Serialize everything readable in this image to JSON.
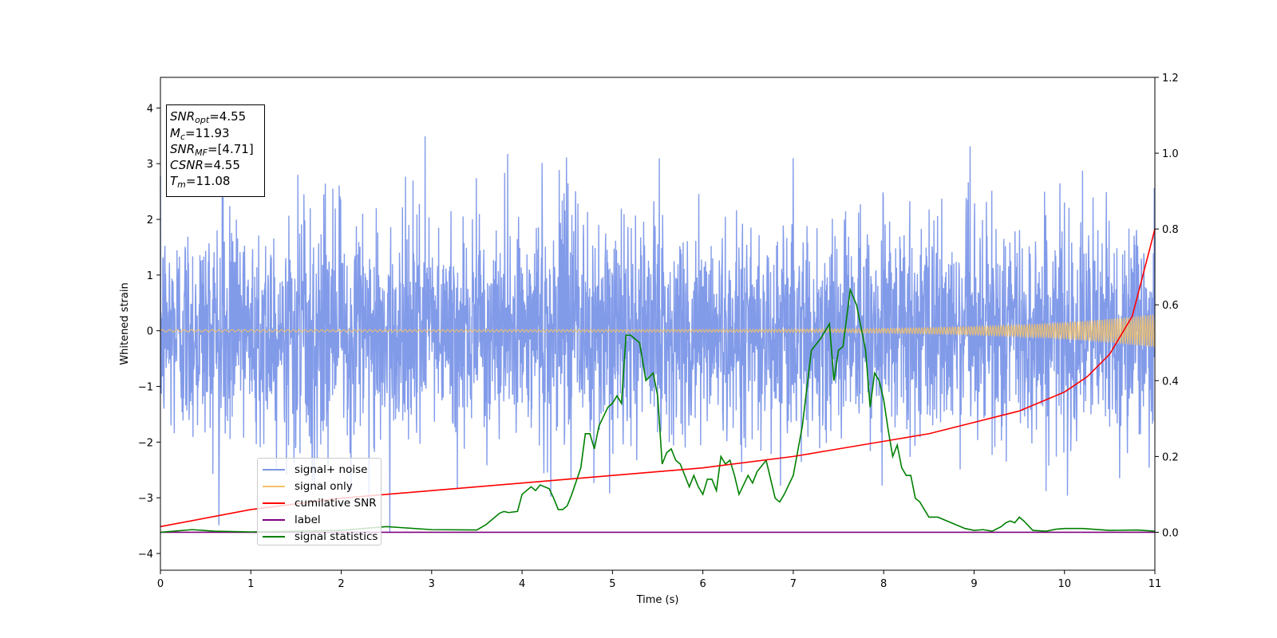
{
  "chart_data": {
    "type": "line",
    "xlabel": "Time (s)",
    "ylabel": "Whitened strain",
    "xlim": [
      0,
      11
    ],
    "ylim_left": [
      -4.3,
      4.55
    ],
    "ylim_right": [
      -0.1,
      1.2
    ],
    "xticks": [
      "0",
      "1",
      "2",
      "3",
      "4",
      "5",
      "6",
      "7",
      "8",
      "9",
      "10",
      "11"
    ],
    "yticks_left": [
      "−4",
      "−3",
      "−2",
      "−1",
      "0",
      "1",
      "2",
      "3",
      "4"
    ],
    "yticks_right": [
      "0.0",
      "0.2",
      "0.4",
      "0.6",
      "0.8",
      "1.0",
      "1.2"
    ],
    "grid": false,
    "legend_position": "lower-left",
    "info_box": {
      "snr_opt": "=4.55",
      "mc": "=11.93",
      "snr_mf": "=[4.71]",
      "csnr": "=4.55",
      "tm": "=11.08"
    },
    "series": [
      {
        "name": "signal+ noise",
        "axis": "left",
        "color": "#7b96e8",
        "noise_std": 1.0,
        "envelope_range": [
          -3.85,
          3.6
        ]
      },
      {
        "name": "signal only",
        "axis": "left",
        "color": "#f5c266",
        "amplitude_start": 0.02,
        "amplitude_end": 0.3
      },
      {
        "name": "cumilative SNR",
        "axis": "right",
        "color": "#ff0000",
        "x": [
          0,
          1,
          2,
          3,
          4,
          5,
          6,
          7,
          7.5,
          8,
          8.5,
          9,
          9.5,
          10,
          10.25,
          10.5,
          10.75,
          11
        ],
        "y": [
          0.015,
          0.06,
          0.09,
          0.11,
          0.13,
          0.15,
          0.17,
          0.2,
          0.22,
          0.24,
          0.26,
          0.29,
          0.32,
          0.37,
          0.41,
          0.47,
          0.57,
          0.8
        ]
      },
      {
        "name": "label",
        "axis": "right",
        "color": "#800080",
        "x": [
          0,
          11
        ],
        "y": [
          0.0,
          0.0
        ]
      },
      {
        "name": "signal statistics",
        "axis": "right",
        "color": "#008000",
        "x": [
          0,
          0.35,
          0.6,
          1.0,
          1.5,
          2.0,
          2.5,
          3.0,
          3.5,
          3.6,
          3.7,
          3.75,
          3.8,
          3.85,
          3.95,
          4.0,
          4.1,
          4.15,
          4.2,
          4.3,
          4.35,
          4.4,
          4.45,
          4.5,
          4.55,
          4.65,
          4.7,
          4.75,
          4.8,
          4.85,
          4.95,
          5.0,
          5.05,
          5.1,
          5.15,
          5.2,
          5.3,
          5.37,
          5.45,
          5.5,
          5.55,
          5.6,
          5.65,
          5.7,
          5.75,
          5.85,
          5.9,
          5.95,
          6.0,
          6.05,
          6.1,
          6.15,
          6.2,
          6.25,
          6.3,
          6.35,
          6.4,
          6.5,
          6.55,
          6.6,
          6.7,
          6.8,
          6.85,
          6.9,
          7.0,
          7.1,
          7.2,
          7.3,
          7.4,
          7.45,
          7.5,
          7.55,
          7.63,
          7.7,
          7.8,
          7.85,
          7.9,
          7.95,
          8.0,
          8.05,
          8.1,
          8.15,
          8.2,
          8.25,
          8.3,
          8.35,
          8.4,
          8.5,
          8.6,
          8.7,
          8.8,
          8.9,
          9.0,
          9.1,
          9.2,
          9.3,
          9.35,
          9.4,
          9.45,
          9.5,
          9.55,
          9.65,
          9.8,
          9.9,
          10.0,
          10.2,
          10.5,
          10.8,
          11.0
        ],
        "y": [
          0.0,
          0.007,
          0.003,
          0.001,
          0.003,
          0.005,
          0.015,
          0.007,
          0.006,
          0.02,
          0.04,
          0.05,
          0.055,
          0.052,
          0.055,
          0.1,
          0.12,
          0.11,
          0.125,
          0.115,
          0.09,
          0.06,
          0.06,
          0.07,
          0.1,
          0.17,
          0.26,
          0.26,
          0.22,
          0.28,
          0.33,
          0.34,
          0.36,
          0.34,
          0.52,
          0.52,
          0.5,
          0.4,
          0.42,
          0.36,
          0.18,
          0.21,
          0.22,
          0.19,
          0.18,
          0.12,
          0.15,
          0.12,
          0.1,
          0.14,
          0.14,
          0.11,
          0.2,
          0.18,
          0.19,
          0.15,
          0.1,
          0.15,
          0.13,
          0.16,
          0.19,
          0.09,
          0.08,
          0.1,
          0.15,
          0.28,
          0.48,
          0.51,
          0.55,
          0.4,
          0.48,
          0.49,
          0.64,
          0.6,
          0.48,
          0.33,
          0.42,
          0.4,
          0.35,
          0.27,
          0.2,
          0.23,
          0.17,
          0.15,
          0.15,
          0.09,
          0.08,
          0.04,
          0.04,
          0.03,
          0.02,
          0.01,
          0.005,
          0.007,
          0.003,
          0.015,
          0.025,
          0.03,
          0.025,
          0.04,
          0.03,
          0.005,
          0.003,
          0.008,
          0.01,
          0.01,
          0.005,
          0.006,
          0.003
        ]
      }
    ]
  }
}
